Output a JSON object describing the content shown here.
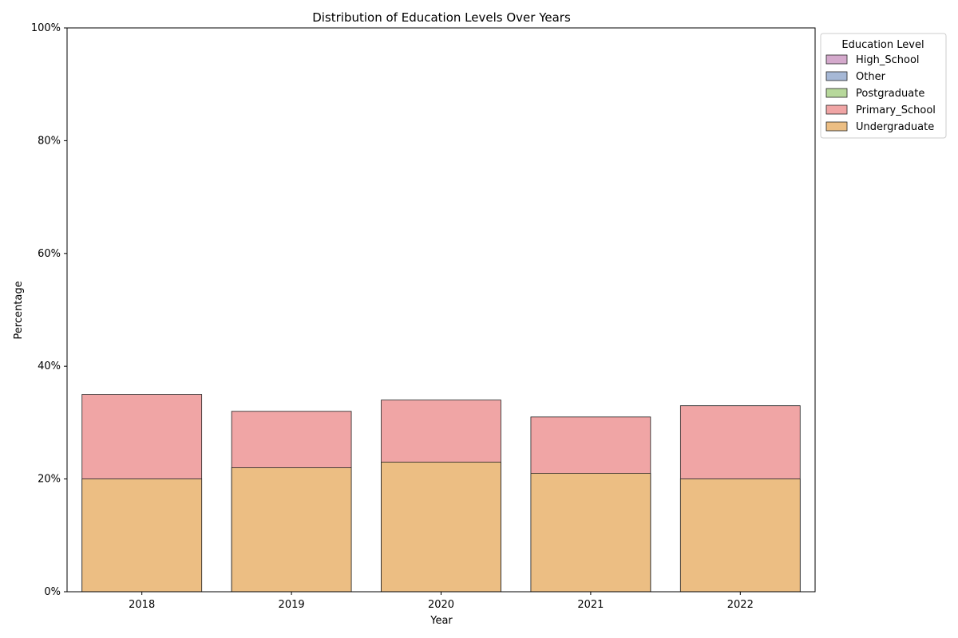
{
  "chart_data": {
    "type": "bar",
    "title": "Distribution of Education Levels Over Years",
    "xlabel": "Year",
    "ylabel": "Percentage",
    "categories": [
      "2018",
      "2019",
      "2020",
      "2021",
      "2022"
    ],
    "ylim": [
      0,
      100
    ],
    "yticks": [
      "0%",
      "20%",
      "40%",
      "60%",
      "80%",
      "100%"
    ],
    "grid": false,
    "legend": {
      "title": "Education Level",
      "placement": "upper-right-outside"
    },
    "series": [
      {
        "name": "High_School",
        "color": "#d4a9cc",
        "values": [
          0,
          0,
          0,
          0,
          0
        ]
      },
      {
        "name": "Other",
        "color": "#a6b8d6",
        "values": [
          0,
          0,
          0,
          0,
          0
        ]
      },
      {
        "name": "Postgraduate",
        "color": "#b7d89b",
        "values": [
          0,
          0,
          0,
          0,
          0
        ]
      },
      {
        "name": "Primary_School",
        "color": "#f0a5a5",
        "values": [
          35,
          32,
          34,
          31,
          33
        ]
      },
      {
        "name": "Undergraduate",
        "color": "#ecbe83",
        "values": [
          20,
          22,
          23,
          21,
          20
        ]
      }
    ]
  }
}
